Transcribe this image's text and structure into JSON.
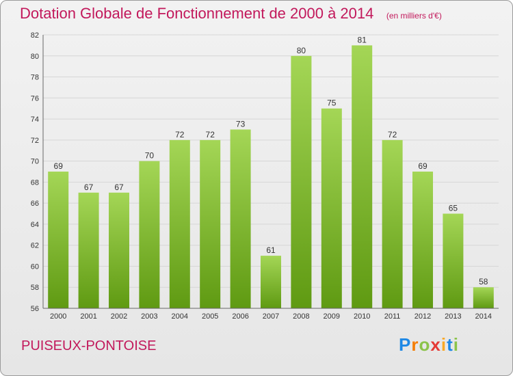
{
  "header": {
    "title": "Dotation Globale de Fonctionnement de 2000 à 2014",
    "unit_note": "(en milliers d'€)"
  },
  "footer": {
    "commune": "PUISEUX-PONTOISE",
    "logo_text": "Proxiti"
  },
  "colors": {
    "title": "#c2185b",
    "bar_top": "#a4d656",
    "bar_bottom": "#5f9a12",
    "grid": "#d6d6d6"
  },
  "chart_data": {
    "type": "bar",
    "title": "Dotation Globale de Fonctionnement de 2000 à 2014",
    "subtitle": "(en milliers d'€)",
    "xlabel": "",
    "ylabel": "",
    "categories": [
      "2000",
      "2001",
      "2002",
      "2003",
      "2004",
      "2005",
      "2006",
      "2007",
      "2008",
      "2009",
      "2010",
      "2011",
      "2012",
      "2013",
      "2014"
    ],
    "values": [
      69,
      67,
      67,
      70,
      72,
      72,
      73,
      61,
      80,
      75,
      81,
      72,
      69,
      65,
      58
    ],
    "ylim": [
      56,
      82
    ],
    "yticks": [
      56,
      58,
      60,
      62,
      64,
      66,
      68,
      70,
      72,
      74,
      76,
      78,
      80,
      82
    ],
    "grid": true,
    "legend": "none"
  }
}
